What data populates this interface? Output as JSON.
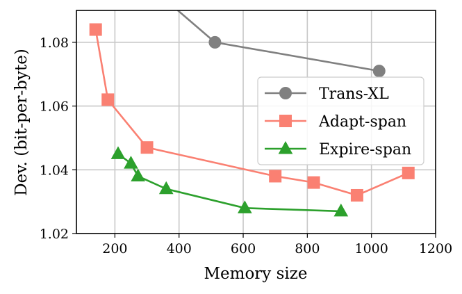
{
  "chart_data": {
    "type": "line",
    "title": "",
    "xlabel": "Memory size",
    "ylabel": "Dev. (bit-per-byte)",
    "xlim": [
      80,
      1200
    ],
    "ylim": [
      1.02,
      1.09
    ],
    "xticks": [
      200,
      400,
      600,
      800,
      1000,
      1200
    ],
    "yticks": [
      1.02,
      1.04,
      1.06,
      1.08
    ],
    "xtick_labels": [
      "200",
      "400",
      "600",
      "800",
      "1000",
      "1200"
    ],
    "ytick_labels": [
      "1.02",
      "1.04",
      "1.06",
      "1.08"
    ],
    "grid": true,
    "legend_position": "center-right",
    "series": [
      {
        "name": "Trans-XL",
        "color": "#808080",
        "marker": "circle",
        "points": [
          [
            350,
            1.094
          ],
          [
            512,
            1.08
          ],
          [
            1024,
            1.071
          ]
        ]
      },
      {
        "name": "Adapt-span",
        "color": "#fa8072",
        "marker": "square",
        "points": [
          [
            140,
            1.084
          ],
          [
            178,
            1.062
          ],
          [
            300,
            1.047
          ],
          [
            700,
            1.038
          ],
          [
            820,
            1.036
          ],
          [
            955,
            1.032
          ],
          [
            1115,
            1.039
          ]
        ]
      },
      {
        "name": "Expire-span",
        "color": "#2ca02c",
        "marker": "triangle",
        "points": [
          [
            210,
            1.045
          ],
          [
            250,
            1.042
          ],
          [
            272,
            1.038
          ],
          [
            360,
            1.034
          ],
          [
            605,
            1.028
          ],
          [
            905,
            1.027
          ]
        ]
      }
    ]
  }
}
